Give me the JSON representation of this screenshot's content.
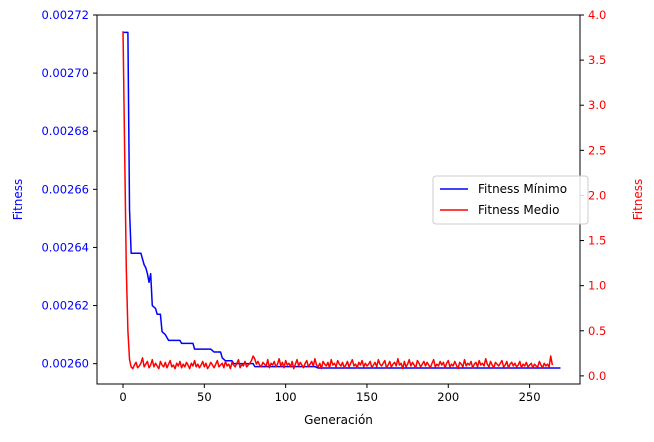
{
  "chart_data": {
    "type": "line",
    "xlabel": "Generación",
    "ylabel_left": "Fitness",
    "ylabel_right": "Fitness",
    "xlim": [
      -16,
      281
    ],
    "ylim_left": [
      0.002593,
      0.00272
    ],
    "ylim_right": [
      -0.09,
      4.0
    ],
    "x_ticks": [
      0,
      50,
      100,
      150,
      200,
      250
    ],
    "x_tick_labels": [
      "0",
      "50",
      "100",
      "150",
      "200",
      "250"
    ],
    "y_left_ticks": [
      0.0026,
      0.00262,
      0.00264,
      0.00266,
      0.00268,
      0.0027,
      0.00272
    ],
    "y_left_tick_labels": [
      "0.00260",
      "0.00262",
      "0.00264",
      "0.00266",
      "0.00268",
      "0.00270",
      "0.00272"
    ],
    "y_right_ticks": [
      0.0,
      0.5,
      1.0,
      1.5,
      2.0,
      2.5,
      3.0,
      3.5,
      4.0
    ],
    "y_right_tick_labels": [
      "0.0",
      "0.5",
      "1.0",
      "1.5",
      "2.0",
      "2.5",
      "3.0",
      "3.5",
      "4.0"
    ],
    "legend_position": "right",
    "grid": false,
    "series": [
      {
        "name": "Fitness Mínimo",
        "axis": "left",
        "color": "#0000ff",
        "points": [
          [
            0,
            0.002714
          ],
          [
            3,
            0.002714
          ],
          [
            4,
            0.002653
          ],
          [
            5,
            0.002638
          ],
          [
            11,
            0.002638
          ],
          [
            13,
            0.002634
          ],
          [
            14,
            0.002633
          ],
          [
            15,
            0.002631
          ],
          [
            16,
            0.002628
          ],
          [
            17,
            0.002631
          ],
          [
            18,
            0.00262
          ],
          [
            20,
            0.002619
          ],
          [
            21,
            0.002617
          ],
          [
            23,
            0.002617
          ],
          [
            24,
            0.002611
          ],
          [
            26,
            0.00261
          ],
          [
            28,
            0.002608
          ],
          [
            35,
            0.002608
          ],
          [
            36,
            0.002607
          ],
          [
            43,
            0.002607
          ],
          [
            44,
            0.002605
          ],
          [
            54,
            0.002605
          ],
          [
            56,
            0.002604
          ],
          [
            60,
            0.002604
          ],
          [
            61,
            0.002602
          ],
          [
            63,
            0.002601
          ],
          [
            67,
            0.002601
          ],
          [
            68,
            0.0026
          ],
          [
            80,
            0.0026
          ],
          [
            81,
            0.002599
          ],
          [
            118,
            0.002599
          ],
          [
            120,
            0.0025985
          ],
          [
            269,
            0.0025985
          ]
        ]
      },
      {
        "name": "Fitness Medio",
        "axis": "right",
        "color": "#ff0000",
        "x_start": 0,
        "values": [
          3.82,
          2.5,
          1.2,
          0.5,
          0.18,
          0.1,
          0.08,
          0.12,
          0.15,
          0.09,
          0.11,
          0.14,
          0.2,
          0.1,
          0.13,
          0.16,
          0.09,
          0.12,
          0.18,
          0.1,
          0.14,
          0.11,
          0.08,
          0.16,
          0.12,
          0.1,
          0.15,
          0.09,
          0.13,
          0.17,
          0.1,
          0.12,
          0.08,
          0.14,
          0.11,
          0.16,
          0.09,
          0.13,
          0.1,
          0.15,
          0.12,
          0.08,
          0.14,
          0.11,
          0.17,
          0.1,
          0.13,
          0.09,
          0.12,
          0.16,
          0.1,
          0.14,
          0.08,
          0.11,
          0.15,
          0.12,
          0.09,
          0.13,
          0.17,
          0.1,
          0.12,
          0.14,
          0.09,
          0.16,
          0.11,
          0.13,
          0.08,
          0.15,
          0.12,
          0.1,
          0.14,
          0.18,
          0.09,
          0.13,
          0.11,
          0.16,
          0.1,
          0.12,
          0.14,
          0.17,
          0.22,
          0.19,
          0.13,
          0.16,
          0.12,
          0.1,
          0.15,
          0.13,
          0.11,
          0.18,
          0.09,
          0.14,
          0.12,
          0.16,
          0.1,
          0.13,
          0.19,
          0.11,
          0.15,
          0.09,
          0.17,
          0.12,
          0.14,
          0.1,
          0.16,
          0.08,
          0.13,
          0.18,
          0.11,
          0.15,
          0.12,
          0.09,
          0.14,
          0.17,
          0.1,
          0.13,
          0.16,
          0.11,
          0.19,
          0.12,
          0.1,
          0.14,
          0.08,
          0.16,
          0.13,
          0.11,
          0.15,
          0.09,
          0.18,
          0.12,
          0.14,
          0.1,
          0.17,
          0.13,
          0.11,
          0.15,
          0.09,
          0.12,
          0.16,
          0.1,
          0.14,
          0.18,
          0.11,
          0.13,
          0.09,
          0.15,
          0.12,
          0.17,
          0.1,
          0.14,
          0.11,
          0.13,
          0.16,
          0.09,
          0.12,
          0.15,
          0.1,
          0.18,
          0.13,
          0.11,
          0.14,
          0.17,
          0.09,
          0.12,
          0.16,
          0.1,
          0.13,
          0.15,
          0.11,
          0.19,
          0.12,
          0.14,
          0.08,
          0.16,
          0.1,
          0.13,
          0.18,
          0.11,
          0.15,
          0.12,
          0.09,
          0.17,
          0.14,
          0.1,
          0.13,
          0.16,
          0.11,
          0.15,
          0.12,
          0.09,
          0.14,
          0.18,
          0.1,
          0.13,
          0.11,
          0.16,
          0.12,
          0.15,
          0.09,
          0.14,
          0.17,
          0.1,
          0.13,
          0.11,
          0.16,
          0.12,
          0.08,
          0.15,
          0.13,
          0.1,
          0.18,
          0.11,
          0.14,
          0.12,
          0.16,
          0.09,
          0.13,
          0.15,
          0.1,
          0.17,
          0.12,
          0.14,
          0.11,
          0.19,
          0.13,
          0.1,
          0.16,
          0.12,
          0.09,
          0.15,
          0.13,
          0.11,
          0.14,
          0.17,
          0.1,
          0.12,
          0.16,
          0.09,
          0.13,
          0.15,
          0.11,
          0.14,
          0.1,
          0.12,
          0.16,
          0.09,
          0.13,
          0.11,
          0.15,
          0.1,
          0.12,
          0.14,
          0.09,
          0.13,
          0.11,
          0.1,
          0.16,
          0.12,
          0.09,
          0.14,
          0.11,
          0.13,
          0.1,
          0.22,
          0.12
        ]
      }
    ]
  }
}
